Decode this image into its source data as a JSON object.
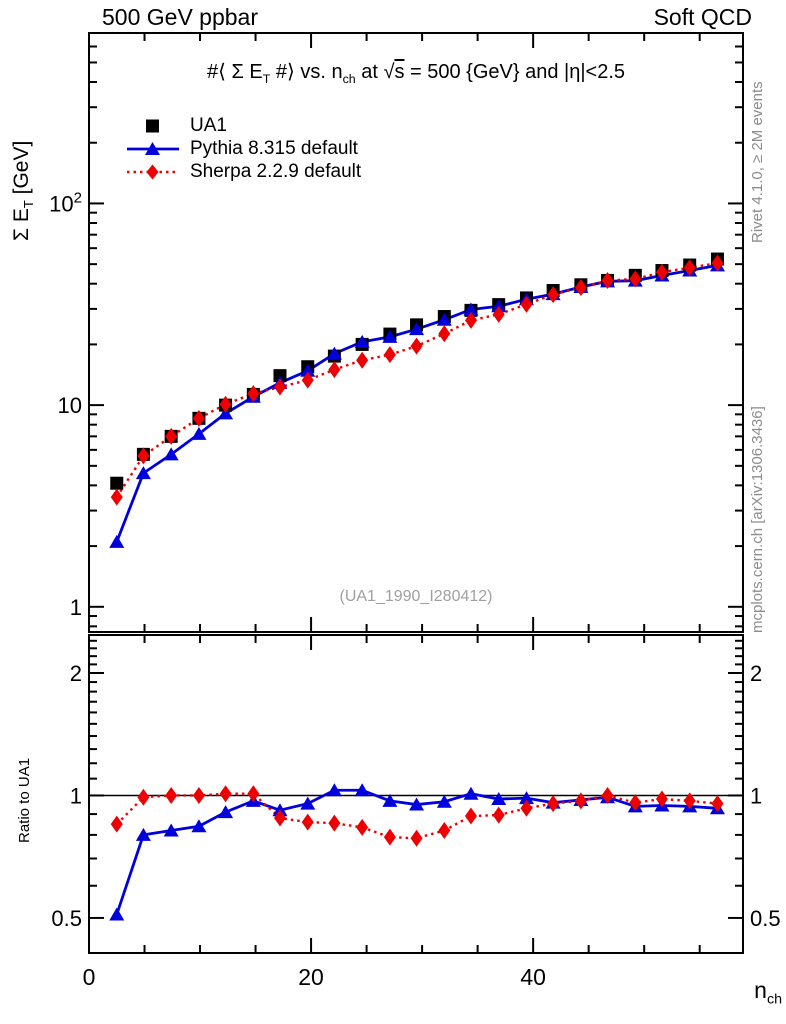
{
  "header": {
    "left": "500 GeV ppbar",
    "right": "Soft QCD"
  },
  "plot_title": {
    "p1": "#⟨ Σ E",
    "s1": "T",
    "p2": " #⟩ vs. n",
    "s2": "ch",
    "p3": " at √",
    "sqrt_arg": "s",
    "p4": " = 500 {GeV} and |η|<2.5"
  },
  "watermark": "(UA1_1990_I280412)",
  "side_notes": {
    "right_top": "Rivet 4.1.0, ≥ 2M events",
    "right_bottom": "mcplots.cern.ch [arXiv:1306.3436]"
  },
  "axis_titles": {
    "y_main": {
      "p1": "Σ E",
      "sub": "T",
      "p2": " [GeV]"
    },
    "y_ratio": "Ratio to UA1",
    "x": {
      "p1": "n",
      "sub": "ch"
    }
  },
  "colors": {
    "ua1": "#000000",
    "pythia": "#0000dd",
    "sherpa": "#ee0000",
    "frame": "#000000",
    "watermark": "#a0a0a0",
    "side_note": "#8c8c8c"
  },
  "chart_data": [
    {
      "type": "scatter",
      "panel": "main",
      "title": "#⟨ Σ E_T #⟩ vs. n_ch at √s = 500 {GeV} and |η|<2.5",
      "xlabel": "n_ch",
      "ylabel": "Σ E_T [GeV]",
      "yscale": "log",
      "xlim": [
        0,
        58.9
      ],
      "ylim": [
        0.75,
        700
      ],
      "xticks_major": [
        0,
        20,
        40
      ],
      "xtick_minor_step": 5,
      "ytick_values": [
        1,
        10,
        100
      ],
      "yticks_labeled": [
        "1",
        "10",
        "10^2"
      ],
      "legend_position": "top-left",
      "grid": false,
      "x": [
        2.5,
        4.9,
        7.4,
        9.9,
        12.3,
        14.8,
        17.2,
        19.7,
        22.1,
        24.6,
        27.1,
        29.5,
        32.0,
        34.4,
        36.9,
        39.4,
        41.8,
        44.3,
        46.7,
        49.2,
        51.6,
        54.1,
        56.6
      ],
      "series": [
        {
          "name": "UA1",
          "marker": "square",
          "color": "#000000",
          "line": "none",
          "values": [
            4.1,
            5.7,
            7.0,
            8.6,
            10.0,
            11.3,
            14.0,
            15.5,
            17.5,
            20.0,
            22.5,
            25.0,
            27.5,
            29.5,
            31.5,
            34.0,
            37.0,
            39.5,
            41.5,
            44.0,
            46.5,
            49.5,
            53.0
          ]
        },
        {
          "name": "Pythia 8.315 default",
          "marker": "triangle",
          "color": "#0000dd",
          "line": "solid",
          "values": [
            2.1,
            4.6,
            5.7,
            7.2,
            9.1,
            11.0,
            12.9,
            14.8,
            18.0,
            20.6,
            21.8,
            23.8,
            26.5,
            29.8,
            30.9,
            33.5,
            35.5,
            38.5,
            41.1,
            41.4,
            43.9,
            46.5,
            49.3
          ]
        },
        {
          "name": "Sherpa 2.2.9 default",
          "marker": "diamond",
          "color": "#ee0000",
          "line": "dotted",
          "values": [
            3.5,
            5.6,
            7.0,
            8.6,
            10.1,
            11.4,
            12.3,
            13.3,
            15.0,
            16.7,
            17.8,
            19.6,
            22.6,
            26.3,
            28.2,
            31.6,
            35.3,
            38.3,
            41.5,
            42.2,
            45.6,
            48.0,
            50.6
          ]
        }
      ]
    },
    {
      "type": "line",
      "panel": "ratio",
      "ylabel": "Ratio to UA1",
      "yscale": "log",
      "xlim": [
        0,
        58.9
      ],
      "ylim": [
        0.41,
        2.48
      ],
      "xticks_major": [
        0,
        20,
        40
      ],
      "xtick_minor_step": 5,
      "ytick_values": [
        0.5,
        1,
        2
      ],
      "yticks_labeled": [
        "0.5",
        "1",
        "2"
      ],
      "reference_line": 1,
      "grid": false,
      "x": [
        2.5,
        4.9,
        7.4,
        9.9,
        12.3,
        14.8,
        17.2,
        19.7,
        22.1,
        24.6,
        27.1,
        29.5,
        32.0,
        34.4,
        36.9,
        39.4,
        41.8,
        44.3,
        46.7,
        49.2,
        51.6,
        54.1,
        56.6
      ],
      "series": [
        {
          "name": "Pythia 8.315 default / UA1",
          "marker": "triangle",
          "color": "#0000dd",
          "line": "solid",
          "values": [
            0.51,
            0.8,
            0.82,
            0.84,
            0.91,
            0.97,
            0.92,
            0.955,
            1.03,
            1.03,
            0.97,
            0.95,
            0.965,
            1.01,
            0.98,
            0.985,
            0.96,
            0.975,
            0.99,
            0.94,
            0.945,
            0.94,
            0.93
          ]
        },
        {
          "name": "Sherpa 2.2.9 default / UA1",
          "marker": "diamond",
          "color": "#ee0000",
          "line": "dotted",
          "values": [
            0.85,
            0.99,
            1.0,
            1.0,
            1.01,
            1.01,
            0.88,
            0.86,
            0.855,
            0.835,
            0.79,
            0.785,
            0.82,
            0.89,
            0.895,
            0.93,
            0.955,
            0.97,
            1.0,
            0.96,
            0.98,
            0.97,
            0.955
          ]
        }
      ]
    }
  ]
}
